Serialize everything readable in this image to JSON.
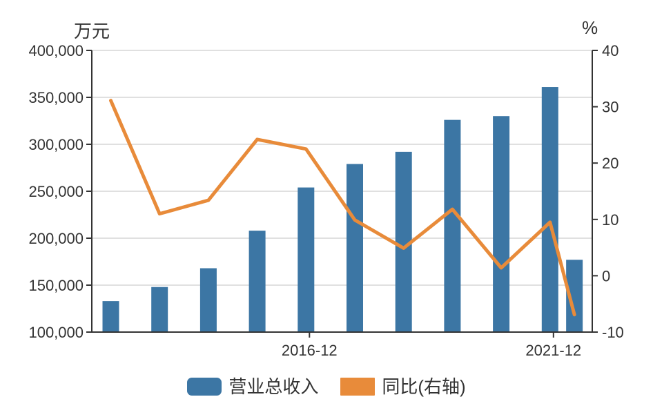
{
  "page": {
    "background": "#ffffff"
  },
  "colors": {
    "bar": "#3c76a4",
    "line": "#e88b3a",
    "axis": "#333333",
    "text": "#333333",
    "grid": "#e0e0e0",
    "background": "#ffffff"
  },
  "chart_data": {
    "type": "bar",
    "subtype": "combo-bar-line-dual-axis",
    "title": "",
    "x": {
      "units": [
        0,
        1,
        2,
        3,
        4,
        5,
        6,
        7,
        8,
        9,
        9.5
      ],
      "ticks": [
        {
          "unit": 4,
          "label": "2016-12"
        },
        {
          "unit": 9,
          "label": "2021-12"
        }
      ]
    },
    "left_axis": {
      "title": "万元",
      "min": 100000,
      "max": 400000,
      "tick_values": [
        400000,
        350000,
        300000,
        250000,
        200000,
        150000,
        100000
      ],
      "tick_labels": [
        "400,000",
        "350,000",
        "300,000",
        "250,000",
        "200,000",
        "150,000",
        "100,000"
      ]
    },
    "right_axis": {
      "title": "%",
      "min": -10,
      "max": 40,
      "tick_values": [
        40,
        30,
        20,
        10,
        0,
        -10
      ],
      "tick_labels": [
        "40",
        "30",
        "20",
        "10",
        "0",
        "-10"
      ]
    },
    "series": [
      {
        "name": "营业总收入",
        "type": "bar",
        "axis": "left",
        "color": "#3c76a4",
        "values": [
          133000,
          148000,
          168000,
          208000,
          254000,
          279000,
          292000,
          326000,
          330000,
          361000,
          177000
        ]
      },
      {
        "name": "同比(右轴)",
        "type": "line",
        "axis": "right",
        "color": "#e88b3a",
        "values": [
          31.1,
          11.0,
          13.4,
          24.2,
          22.5,
          9.9,
          4.9,
          11.8,
          1.4,
          9.5,
          -6.9
        ]
      }
    ],
    "grid": {
      "show": true,
      "color": "#e0e0e0"
    },
    "legend_position": "bottom"
  },
  "legend": {
    "items": [
      {
        "label": "营业总收入",
        "color": "#3c76a4",
        "shape": "rounded"
      },
      {
        "label": "同比(右轴)",
        "color": "#e88b3a",
        "shape": "square"
      }
    ]
  }
}
